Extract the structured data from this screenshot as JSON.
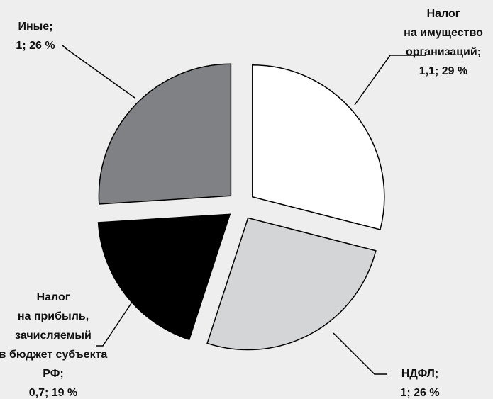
{
  "chart_data": {
    "type": "pie",
    "categories": [
      [
        "Налог",
        "на имущество",
        "организаций;"
      ],
      [
        "НДФЛ;"
      ],
      [
        "Налог",
        "на прибыль,",
        "зачисляемый",
        "в бюджет субъекта",
        "РФ;"
      ],
      [
        "Иные;"
      ]
    ],
    "values": [
      29,
      26,
      19,
      26
    ],
    "value_labels": [
      "1,1; 29 %",
      "1; 26 %",
      "0,7; 19 %",
      "1; 26 %"
    ],
    "colors": [
      "#ffffff",
      "#d4d5d7",
      "#000000",
      "#808184"
    ]
  }
}
